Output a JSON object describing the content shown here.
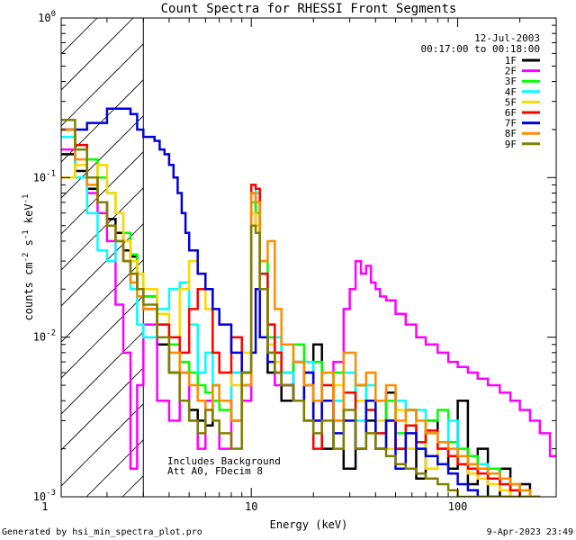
{
  "chart_data": {
    "type": "line",
    "title": "Count Spectra for RHESSI Front Segments",
    "xlabel": "Energy (keV)",
    "ylabel": "counts cm",
    "ylabel_sup1": "-2",
    "ylabel_mid": " s",
    "ylabel_sup2": "-1",
    "ylabel_end": " keV",
    "ylabel_sup3": "-1",
    "x_scale": "log",
    "y_scale": "log",
    "xlim": [
      1.2,
      300
    ],
    "ylim": [
      0.001,
      1
    ],
    "x_tick_labels": [
      {
        "value": 1,
        "label": "1"
      },
      {
        "value": 10,
        "label": "10"
      },
      {
        "value": 100,
        "label": "100"
      }
    ],
    "y_tick_labels": [
      {
        "value": 1,
        "base": "10",
        "exp": "0"
      },
      {
        "value": 0.1,
        "base": "10",
        "exp": "-1"
      },
      {
        "value": 0.01,
        "base": "10",
        "exp": "-2"
      },
      {
        "value": 0.001,
        "base": "10",
        "exp": "-3"
      }
    ],
    "date": "12-Jul-2003",
    "time_range": "00:17:00 to 00:18:00",
    "hatched_region_keV": [
      1.2,
      3.0
    ],
    "annotation_lines": [
      "Includes Background",
      "Att A0, FDecim 8"
    ],
    "series": [
      {
        "name": "1F",
        "color": "#000000",
        "x": [
          1.2,
          1.4,
          1.6,
          1.8,
          2.0,
          2.2,
          2.4,
          2.6,
          2.8,
          3.0,
          3.5,
          4,
          4.5,
          5,
          5.5,
          6,
          6.5,
          7,
          8,
          9,
          10,
          10.5,
          11,
          12,
          13,
          14,
          16,
          18,
          20,
          22,
          25,
          28,
          32,
          36,
          40,
          45,
          50,
          56,
          63,
          70,
          80,
          90,
          100,
          112,
          125,
          140,
          160,
          180,
          200,
          224
        ],
        "y": [
          0.14,
          0.11,
          0.085,
          0.07,
          0.055,
          0.045,
          0.035,
          0.032,
          0.02,
          0.018,
          0.009,
          0.006,
          0.004,
          0.0035,
          0.003,
          0.0028,
          0.005,
          0.004,
          0.003,
          0.006,
          0.05,
          0.07,
          0.02,
          0.006,
          0.01,
          0.004,
          0.007,
          0.003,
          0.009,
          0.002,
          0.004,
          0.0015,
          0.005,
          0.003,
          0.002,
          0.0045,
          0.002,
          0.0035,
          0.0013,
          0.003,
          0.002,
          0.0015,
          0.004,
          0.0012,
          0.002,
          0.001,
          0.0015,
          0.001,
          0.0012,
          0.001
        ]
      },
      {
        "name": "2F",
        "color": "#ff00ff",
        "x": [
          1.2,
          1.4,
          1.6,
          1.8,
          2.0,
          2.2,
          2.4,
          2.6,
          2.8,
          3.0,
          3.5,
          4,
          4.5,
          5,
          5.5,
          6,
          6.5,
          7,
          8,
          9,
          10,
          10.5,
          11,
          12,
          13,
          14,
          16,
          18,
          20,
          22,
          25,
          28,
          30,
          32,
          34,
          36,
          38,
          40,
          42,
          45,
          50,
          56,
          63,
          70,
          80,
          90,
          100,
          112,
          125,
          140,
          160,
          180,
          200,
          224,
          250,
          280
        ],
        "y": [
          0.15,
          0.12,
          0.08,
          0.06,
          0.04,
          0.016,
          0.008,
          0.0015,
          0.005,
          0.012,
          0.004,
          0.003,
          0.006,
          0.003,
          0.002,
          0.004,
          0.003,
          0.002,
          0.006,
          0.004,
          0.08,
          0.07,
          0.02,
          0.008,
          0.005,
          0.006,
          0.004,
          0.005,
          0.003,
          0.004,
          0.007,
          0.015,
          0.02,
          0.03,
          0.025,
          0.028,
          0.022,
          0.02,
          0.018,
          0.017,
          0.014,
          0.012,
          0.01,
          0.009,
          0.008,
          0.007,
          0.0065,
          0.006,
          0.0055,
          0.005,
          0.0045,
          0.004,
          0.0035,
          0.003,
          0.0025,
          0.0018
        ]
      },
      {
        "name": "3F",
        "color": "#00ff00",
        "x": [
          1.2,
          1.4,
          1.6,
          1.8,
          2.0,
          2.2,
          2.4,
          2.6,
          2.8,
          3.0,
          3.5,
          4,
          4.5,
          5,
          5.5,
          6,
          6.5,
          7,
          8,
          9,
          10,
          10.5,
          11,
          12,
          13,
          14,
          16,
          18,
          20,
          22,
          25,
          28,
          32,
          36,
          40,
          45,
          50,
          56,
          63,
          70,
          80,
          90,
          100,
          112,
          125,
          140,
          160,
          180,
          200,
          224
        ],
        "y": [
          0.2,
          0.16,
          0.13,
          0.1,
          0.08,
          0.06,
          0.045,
          0.033,
          0.025,
          0.018,
          0.012,
          0.009,
          0.007,
          0.006,
          0.005,
          0.0045,
          0.004,
          0.0035,
          0.003,
          0.006,
          0.07,
          0.06,
          0.03,
          0.01,
          0.008,
          0.006,
          0.009,
          0.005,
          0.007,
          0.004,
          0.006,
          0.003,
          0.005,
          0.0035,
          0.002,
          0.004,
          0.0025,
          0.0035,
          0.002,
          0.003,
          0.0035,
          0.0022,
          0.002,
          0.0018,
          0.0016,
          0.0015,
          0.0013,
          0.0012,
          0.0011,
          0.001
        ]
      },
      {
        "name": "4F",
        "color": "#00ffff",
        "x": [
          1.2,
          1.4,
          1.6,
          1.8,
          2.0,
          2.2,
          2.4,
          2.6,
          2.8,
          3.0,
          3.5,
          4,
          4.5,
          5,
          5.5,
          6,
          6.5,
          7,
          8,
          9,
          10,
          10.5,
          11,
          12,
          13,
          14,
          16,
          18,
          20,
          22,
          25,
          28,
          32,
          36,
          40,
          45,
          50,
          56,
          63,
          70,
          80,
          90,
          100,
          112,
          125,
          140,
          160,
          180,
          200,
          224
        ],
        "y": [
          0.18,
          0.1,
          0.06,
          0.035,
          0.03,
          0.04,
          0.03,
          0.02,
          0.012,
          0.01,
          0.015,
          0.02,
          0.022,
          0.012,
          0.006,
          0.008,
          0.005,
          0.004,
          0.006,
          0.005,
          0.09,
          0.08,
          0.025,
          0.012,
          0.01,
          0.006,
          0.004,
          0.007,
          0.003,
          0.005,
          0.004,
          0.006,
          0.003,
          0.005,
          0.0025,
          0.003,
          0.004,
          0.002,
          0.0035,
          0.0025,
          0.002,
          0.003,
          0.0018,
          0.0015,
          0.0016,
          0.0014,
          0.0012,
          0.0011,
          0.001,
          0.001
        ]
      },
      {
        "name": "5F",
        "color": "#ffd700",
        "x": [
          1.2,
          1.4,
          1.6,
          1.8,
          2.0,
          2.2,
          2.4,
          2.6,
          2.8,
          3.0,
          3.5,
          4,
          4.5,
          5,
          5.5,
          6,
          6.5,
          7,
          8,
          9,
          10,
          10.5,
          11,
          12,
          13,
          14,
          16,
          18,
          20,
          22,
          25,
          28,
          32,
          36,
          40,
          45,
          50,
          56,
          63,
          70,
          80,
          90,
          100,
          112,
          125,
          140,
          160,
          180,
          200,
          224
        ],
        "y": [
          0.1,
          0.12,
          0.09,
          0.12,
          0.08,
          0.06,
          0.04,
          0.03,
          0.025,
          0.02,
          0.014,
          0.01,
          0.02,
          0.03,
          0.025,
          0.015,
          0.008,
          0.006,
          0.005,
          0.008,
          0.06,
          0.05,
          0.02,
          0.009,
          0.007,
          0.005,
          0.004,
          0.006,
          0.003,
          0.004,
          0.005,
          0.003,
          0.004,
          0.0025,
          0.003,
          0.002,
          0.0035,
          0.002,
          0.003,
          0.0015,
          0.002,
          0.0018,
          0.0016,
          0.0014,
          0.0013,
          0.0012,
          0.0011,
          0.001,
          0.001,
          0.001
        ]
      },
      {
        "name": "6F",
        "color": "#ff0000",
        "x": [
          1.2,
          1.4,
          1.6,
          1.8,
          2.0,
          2.2,
          2.4,
          2.6,
          2.8,
          3.0,
          3.5,
          4,
          4.5,
          5,
          5.5,
          6,
          6.5,
          7,
          8,
          9,
          10,
          10.5,
          11,
          12,
          13,
          14,
          16,
          18,
          20,
          22,
          25,
          28,
          32,
          36,
          40,
          45,
          50,
          56,
          63,
          70,
          80,
          90,
          100,
          112,
          125,
          140,
          160,
          180,
          200,
          224
        ],
        "y": [
          0.2,
          0.16,
          0.1,
          0.07,
          0.05,
          0.04,
          0.03,
          0.025,
          0.02,
          0.015,
          0.012,
          0.01,
          0.008,
          0.015,
          0.02,
          0.02,
          0.008,
          0.006,
          0.01,
          0.005,
          0.09,
          0.085,
          0.025,
          0.012,
          0.008,
          0.005,
          0.004,
          0.006,
          0.002,
          0.005,
          0.003,
          0.0045,
          0.002,
          0.0035,
          0.0025,
          0.003,
          0.002,
          0.0028,
          0.0022,
          0.0026,
          0.002,
          0.0018,
          0.0016,
          0.0015,
          0.0014,
          0.0013,
          0.0012,
          0.0011,
          0.001,
          0.001
        ]
      },
      {
        "name": "7F",
        "color": "#0000dd",
        "x": [
          1.2,
          1.4,
          1.6,
          1.8,
          2.0,
          2.2,
          2.4,
          2.6,
          2.8,
          3.0,
          3.2,
          3.4,
          3.6,
          3.8,
          4.0,
          4.2,
          4.4,
          4.6,
          4.8,
          5.0,
          5.5,
          6,
          6.5,
          7,
          8,
          9,
          10,
          10.5,
          11,
          12,
          13,
          14,
          16,
          18,
          20,
          22,
          25,
          28,
          32,
          36,
          40,
          45,
          50,
          56,
          63,
          70,
          80,
          90,
          100,
          112,
          125,
          140,
          160
        ],
        "y": [
          0.2,
          0.2,
          0.22,
          0.22,
          0.27,
          0.27,
          0.27,
          0.25,
          0.2,
          0.18,
          0.18,
          0.17,
          0.15,
          0.14,
          0.12,
          0.1,
          0.08,
          0.06,
          0.045,
          0.035,
          0.025,
          0.02,
          0.015,
          0.012,
          0.008,
          0.006,
          0.008,
          0.02,
          0.01,
          0.007,
          0.006,
          0.005,
          0.004,
          0.006,
          0.003,
          0.004,
          0.0025,
          0.003,
          0.002,
          0.004,
          0.002,
          0.003,
          0.0015,
          0.0025,
          0.002,
          0.0018,
          0.0016,
          0.0014,
          0.0012,
          0.0011,
          0.001,
          0.001,
          0.001
        ]
      },
      {
        "name": "8F",
        "color": "#ff8c00",
        "x": [
          1.2,
          1.4,
          1.6,
          1.8,
          2.0,
          2.2,
          2.4,
          2.6,
          2.8,
          3.0,
          3.5,
          4,
          4.5,
          5,
          5.5,
          6,
          6.5,
          7,
          8,
          9,
          10,
          10.5,
          11,
          12,
          13,
          14,
          16,
          18,
          20,
          22,
          25,
          28,
          32,
          36,
          40,
          45,
          50,
          56,
          63,
          70,
          80,
          90,
          100,
          112,
          125,
          140,
          160,
          180,
          200,
          224
        ],
        "y": [
          0.2,
          0.13,
          0.09,
          0.07,
          0.05,
          0.04,
          0.03,
          0.022,
          0.018,
          0.015,
          0.01,
          0.008,
          0.006,
          0.005,
          0.004,
          0.0035,
          0.005,
          0.004,
          0.003,
          0.005,
          0.08,
          0.07,
          0.03,
          0.04,
          0.015,
          0.009,
          0.007,
          0.005,
          0.004,
          0.006,
          0.003,
          0.008,
          0.005,
          0.006,
          0.004,
          0.005,
          0.003,
          0.0035,
          0.003,
          0.0025,
          0.0022,
          0.002,
          0.0018,
          0.0016,
          0.0015,
          0.0014,
          0.0013,
          0.0012,
          0.0011,
          0.001
        ]
      },
      {
        "name": "9F",
        "color": "#808000",
        "x": [
          1.2,
          1.4,
          1.6,
          1.8,
          2.0,
          2.2,
          2.4,
          2.6,
          2.8,
          3.0,
          3.5,
          4,
          4.5,
          5,
          5.5,
          6,
          6.5,
          7,
          8,
          9,
          10,
          10.5,
          11,
          12,
          13,
          14,
          16,
          18,
          20,
          22,
          25,
          28,
          32,
          36,
          40,
          45,
          50,
          56,
          63,
          70,
          80,
          90,
          100,
          112,
          125,
          140,
          160,
          180,
          200,
          224
        ],
        "y": [
          0.23,
          0.15,
          0.1,
          0.07,
          0.05,
          0.04,
          0.03,
          0.025,
          0.02,
          0.016,
          0.01,
          0.006,
          0.004,
          0.003,
          0.0025,
          0.0035,
          0.003,
          0.0025,
          0.002,
          0.006,
          0.05,
          0.045,
          0.02,
          0.008,
          0.006,
          0.005,
          0.004,
          0.003,
          0.0025,
          0.003,
          0.002,
          0.0035,
          0.002,
          0.0025,
          0.002,
          0.0018,
          0.0016,
          0.0015,
          0.0014,
          0.0013,
          0.0012,
          0.0011,
          0.001,
          0.001,
          0.001,
          0.001,
          0.001,
          0.001,
          0.001,
          0.001
        ]
      }
    ]
  },
  "footer": {
    "generated_by": "Generated by hsi_min_spectra_plot.pro",
    "timestamp": "9-Apr-2023 23:49"
  }
}
